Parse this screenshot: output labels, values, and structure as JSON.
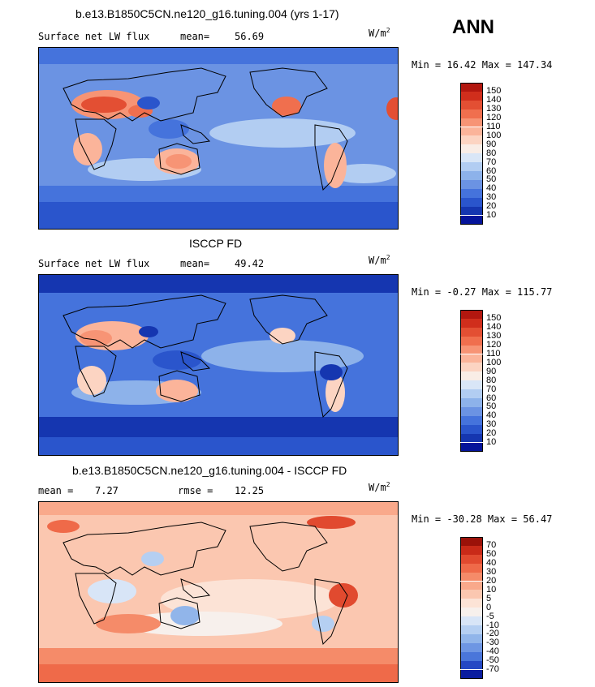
{
  "season": "ANN",
  "panels": [
    {
      "title": "b.e13.B1850C5CN.ne120_g16.tuning.004 (yrs 1-17)",
      "variable": "Surface net LW flux",
      "stat_label": "mean=",
      "stat_value": "56.69",
      "units_base": "W/m",
      "units_exp": "2",
      "min_max": "Min =  16.42 Max = 147.34",
      "colorbar": {
        "labels": [
          "150",
          "140",
          "130",
          "120",
          "110",
          "100",
          "90",
          "80",
          "70",
          "60",
          "50",
          "40",
          "30",
          "20",
          "10"
        ],
        "colors": [
          "#b2170f",
          "#d02e1c",
          "#e34f33",
          "#f06f4e",
          "#f79475",
          "#fbb49a",
          "#fcd4c2",
          "#f9ede6",
          "#d9e6f7",
          "#b2cdf2",
          "#8db2ea",
          "#6b93e3",
          "#4573dc",
          "#2a55cc",
          "#1536b0",
          "#05149a"
        ]
      }
    },
    {
      "title": "ISCCP FD",
      "variable": "Surface net LW flux",
      "stat_label": "mean=",
      "stat_value": "49.42",
      "units_base": "W/m",
      "units_exp": "2",
      "min_max": "Min =  -0.27 Max = 115.77",
      "colorbar": {
        "labels": [
          "150",
          "140",
          "130",
          "120",
          "110",
          "100",
          "90",
          "80",
          "70",
          "60",
          "50",
          "40",
          "30",
          "20",
          "10"
        ],
        "colors": [
          "#b2170f",
          "#d02e1c",
          "#e34f33",
          "#f06f4e",
          "#f79475",
          "#fbb49a",
          "#fcd4c2",
          "#f9ede6",
          "#d9e6f7",
          "#b2cdf2",
          "#8db2ea",
          "#6b93e3",
          "#4573dc",
          "#2a55cc",
          "#1536b0",
          "#05149a"
        ]
      }
    },
    {
      "title": "b.e13.B1850C5CN.ne120_g16.tuning.004 - ISCCP FD",
      "stat_label": "mean =",
      "stat_value": "7.27",
      "stat2_label": "rmse =",
      "stat2_value": "12.25",
      "units_base": "W/m",
      "units_exp": "2",
      "min_max": "Min = -30.28 Max =  56.47",
      "colorbar": {
        "labels": [
          "70",
          "50",
          "40",
          "30",
          "20",
          "10",
          "5",
          "0",
          "-5",
          "-10",
          "-20",
          "-30",
          "-40",
          "-50",
          "-70"
        ],
        "colors": [
          "#9b1209",
          "#c92a18",
          "#e14a2f",
          "#ef6a49",
          "#f58b69",
          "#f9a98b",
          "#fbc7b0",
          "#fce3d6",
          "#f7f0ec",
          "#d8e5f7",
          "#b5cff2",
          "#91b5ea",
          "#6e96e3",
          "#4a76da",
          "#2549c4",
          "#0a1d9f"
        ]
      }
    }
  ],
  "chart_data": {
    "type": "heatmap",
    "description_fields": [
      "panels"
    ],
    "panels": [
      {
        "title": "b.e13.B1850C5CN.ne120_g16.tuning.004 (yrs 1-17)",
        "variable": "Surface net LW flux",
        "mean": 56.69,
        "min": 16.42,
        "max": 147.34,
        "units": "W/m2",
        "levels": [
          10,
          20,
          30,
          40,
          50,
          60,
          70,
          80,
          90,
          100,
          110,
          120,
          130,
          140,
          150
        ]
      },
      {
        "title": "ISCCP FD",
        "variable": "Surface net LW flux",
        "mean": 49.42,
        "min": -0.27,
        "max": 115.77,
        "units": "W/m2",
        "levels": [
          10,
          20,
          30,
          40,
          50,
          60,
          70,
          80,
          90,
          100,
          110,
          120,
          130,
          140,
          150
        ]
      },
      {
        "title": "b.e13.B1850C5CN.ne120_g16.tuning.004 - ISCCP FD",
        "mean": 7.27,
        "rmse": 12.25,
        "min": -30.28,
        "max": 56.47,
        "units": "W/m2",
        "levels": [
          -70,
          -50,
          -40,
          -30,
          -20,
          -10,
          -5,
          0,
          5,
          10,
          20,
          30,
          40,
          50,
          70
        ]
      }
    ]
  }
}
